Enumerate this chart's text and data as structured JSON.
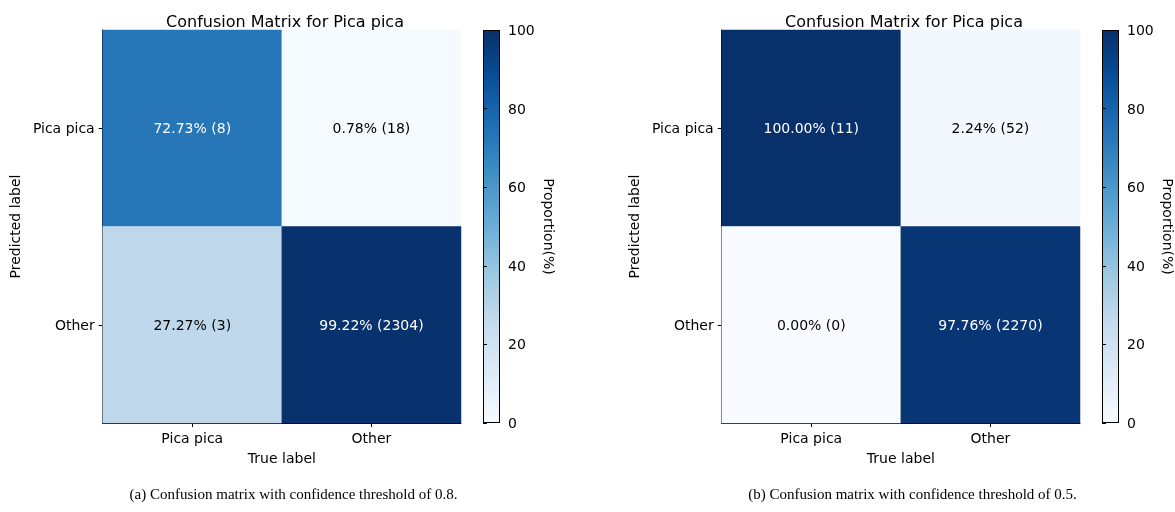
{
  "chart_data": [
    {
      "type": "heatmap",
      "title": "Confusion Matrix for Pica pica",
      "xlabel": "True label",
      "ylabel": "Predicted label",
      "clabel": "Proportion(%)",
      "categories": [
        "Pica pica",
        "Other"
      ],
      "y_categories": [
        "Pica pica",
        "Other"
      ],
      "cells": [
        [
          72.73,
          0.78
        ],
        [
          27.27,
          99.22
        ]
      ],
      "cell_labels": [
        [
          "72.73% (8)",
          "0.78% (18)"
        ],
        [
          "27.27% (3)",
          "99.22% (2304)"
        ]
      ],
      "clim": [
        0,
        100
      ],
      "cticks": [
        0,
        20,
        40,
        60,
        80,
        100
      ],
      "annotations": [
        "(a) Confusion matrix with confidence threshold of 0.8."
      ]
    },
    {
      "type": "heatmap",
      "title": "Confusion Matrix for Pica pica",
      "xlabel": "True label",
      "ylabel": "Predicted label",
      "clabel": "Proportion(%)",
      "categories": [
        "Pica pica",
        "Other"
      ],
      "y_categories": [
        "Pica pica",
        "Other"
      ],
      "cells": [
        [
          100,
          2.24
        ],
        [
          0,
          97.76
        ]
      ],
      "cell_labels": [
        [
          "100.00% (11)",
          "2.24% (52)"
        ],
        [
          "0.00% (0)",
          "97.76% (2270)"
        ]
      ],
      "clim": [
        0,
        100
      ],
      "cticks": [
        0,
        20,
        40,
        60,
        80,
        100
      ],
      "annotations": [
        "(b) Confusion matrix with confidence threshold of 0.5."
      ]
    }
  ]
}
